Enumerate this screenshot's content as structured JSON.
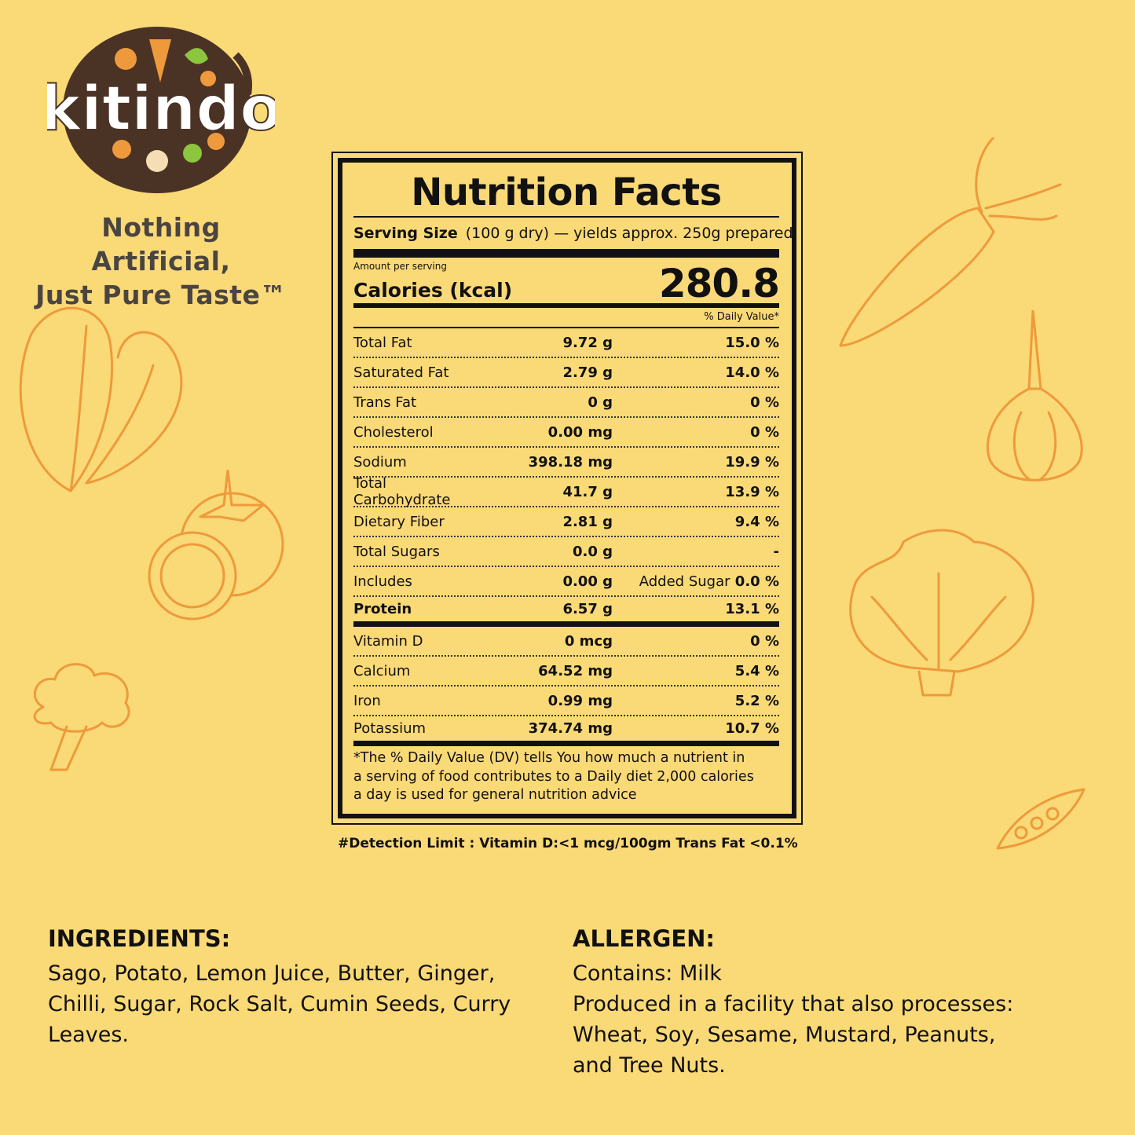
{
  "brand": {
    "logo_text": "kitindo",
    "tagline_line1": "Nothing Artificial,",
    "tagline_line2": "Just Pure Taste™"
  },
  "colors": {
    "background": "#FAD977",
    "illustration": "#EE9A3C",
    "logo_bg": "#4A3325",
    "text": "#111111"
  },
  "label": {
    "title": "Nutrition Facts",
    "serving_label": "Serving Size",
    "serving_value": "(100 g dry) — yields approx. 250g prepared",
    "amount_per_serving": "Amount per serving",
    "calories_label": "Calories (kcal)",
    "calories_value": "280.8",
    "daily_value_header": "% Daily Value*",
    "rows": [
      {
        "name": "Total Fat",
        "amount": "9.72 g",
        "dv": "15.0 %"
      },
      {
        "name": "Saturated Fat",
        "amount": "2.79 g",
        "dv": "14.0 %"
      },
      {
        "name": "Trans Fat",
        "amount": "0 g",
        "dv": "0 %"
      },
      {
        "name": "Cholesterol",
        "amount": "0.00 mg",
        "dv": "0 %"
      },
      {
        "name": "Sodium",
        "amount": "398.18 mg",
        "dv": "19.9 %"
      },
      {
        "name": "Total Carbohydrate",
        "amount": "41.7 g",
        "dv": "13.9 %"
      },
      {
        "name": "Dietary Fiber",
        "amount": "2.81 g",
        "dv": "9.4 %"
      },
      {
        "name": "Total Sugars",
        "amount": "0.0 g",
        "dv": "-"
      },
      {
        "name": "Includes",
        "amount": "0.00 g",
        "dv_prefix": "Added Sugar",
        "dv": "0.0 %"
      },
      {
        "name": "Protein",
        "amount": "6.57 g",
        "dv": "13.1 %"
      },
      {
        "name": "Vitamin D",
        "amount": "0 mcg",
        "dv": "0 %"
      },
      {
        "name": "Calcium",
        "amount": "64.52 mg",
        "dv": "5.4 %"
      },
      {
        "name": "Iron",
        "amount": "0.99 mg",
        "dv": "5.2 %"
      },
      {
        "name": "Potassium",
        "amount": "374.74 mg",
        "dv": "10.7 %"
      }
    ],
    "footnote_line1": "*The % Daily Value (DV) tells You how much a nutrient in",
    "footnote_line2": "a serving of food contributes to a Daily diet 2,000 calories",
    "footnote_line3": "a day is used for general nutrition advice"
  },
  "detection_limit": "#Detection Limit : Vitamin D:<1 mcg/100gm Trans Fat <0.1%",
  "ingredients": {
    "title": "INGREDIENTS:",
    "line1": "Sago, Potato, Lemon Juice, Butter, Ginger,",
    "line2": "Chilli, Sugar, Rock Salt, Cumin Seeds, Curry",
    "line3": "Leaves."
  },
  "allergen": {
    "title": "ALLERGEN:",
    "line1": "Contains: Milk",
    "line2": "Produced in a facility that also processes:",
    "line3": "Wheat, Soy, Sesame, Mustard, Peanuts,",
    "line4": "and Tree Nuts."
  },
  "illustrations": [
    "spinach-icon",
    "tomato-icon",
    "broccoli-icon",
    "carrot-icon",
    "onion-icon",
    "lettuce-icon",
    "peapod-icon"
  ]
}
